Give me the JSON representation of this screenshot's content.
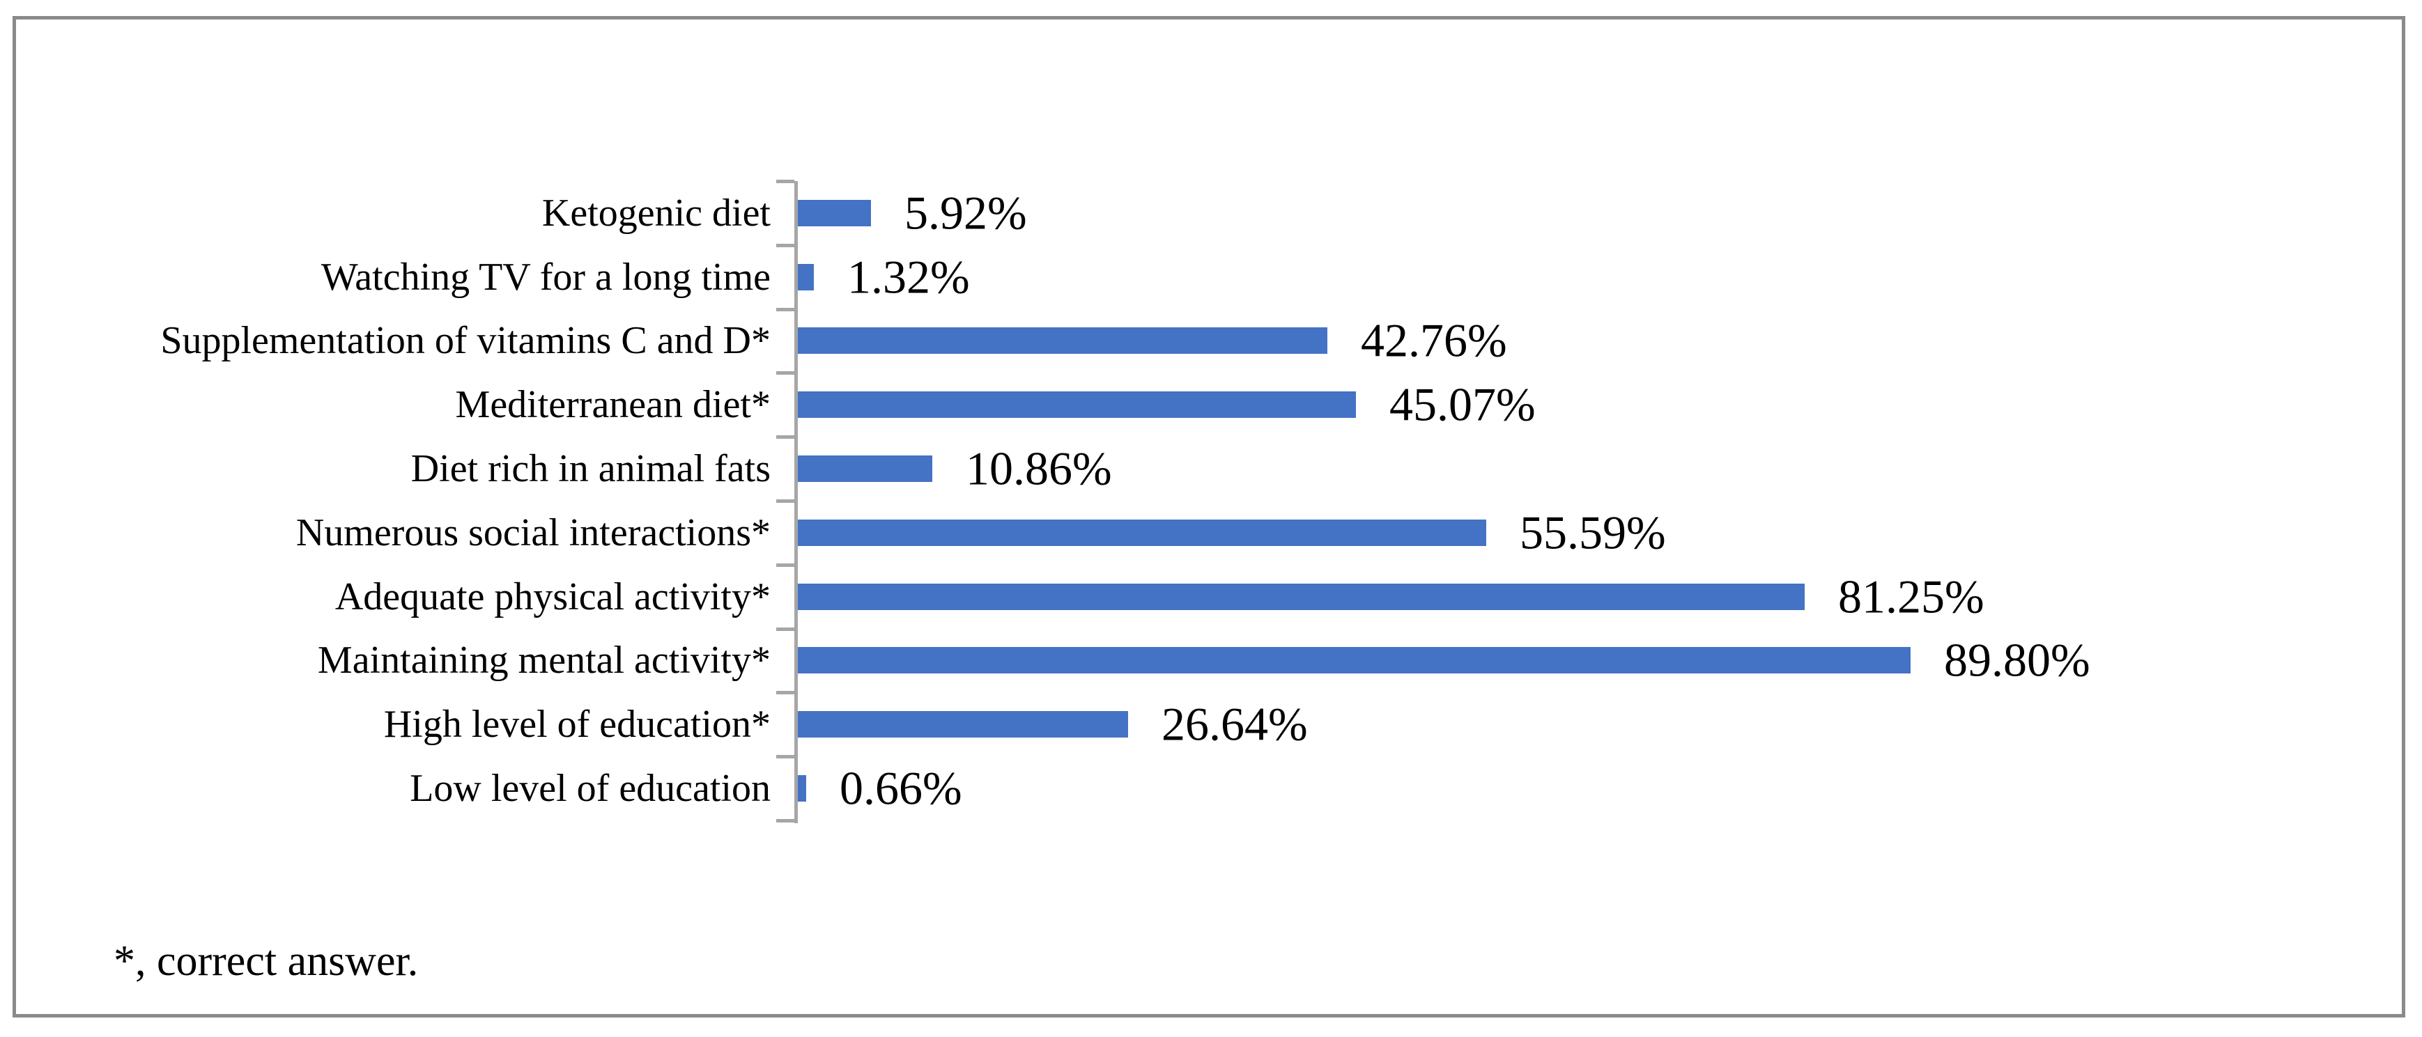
{
  "figure": {
    "background": "#ffffff",
    "border_color": "#8a8a8a"
  },
  "chart_data": {
    "type": "bar",
    "orientation": "horizontal",
    "title": "",
    "xlabel": "",
    "ylabel": "",
    "xlim": [
      0,
      100
    ],
    "grid": false,
    "legend": false,
    "categories": [
      "Ketogenic diet",
      "Watching TV for a long time",
      "Supplementation of vitamins C and D*",
      "Mediterranean diet*",
      "Diet rich in animal fats",
      "Numerous social interactions*",
      "Adequate physical activity*",
      "Maintaining mental activity*",
      "High level of education*",
      "Low level of education"
    ],
    "values": [
      5.92,
      1.32,
      42.76,
      45.07,
      10.86,
      55.59,
      81.25,
      89.8,
      26.64,
      0.66
    ],
    "value_labels": [
      "5.92%",
      "1.32%",
      "42.76%",
      "45.07%",
      "10.86%",
      "55.59%",
      "81.25%",
      "89.80%",
      "26.64%",
      "0.66%"
    ],
    "bar_color": "#4472c4",
    "axis_color": "#a6a6a6",
    "footnote": "*, correct answer."
  }
}
